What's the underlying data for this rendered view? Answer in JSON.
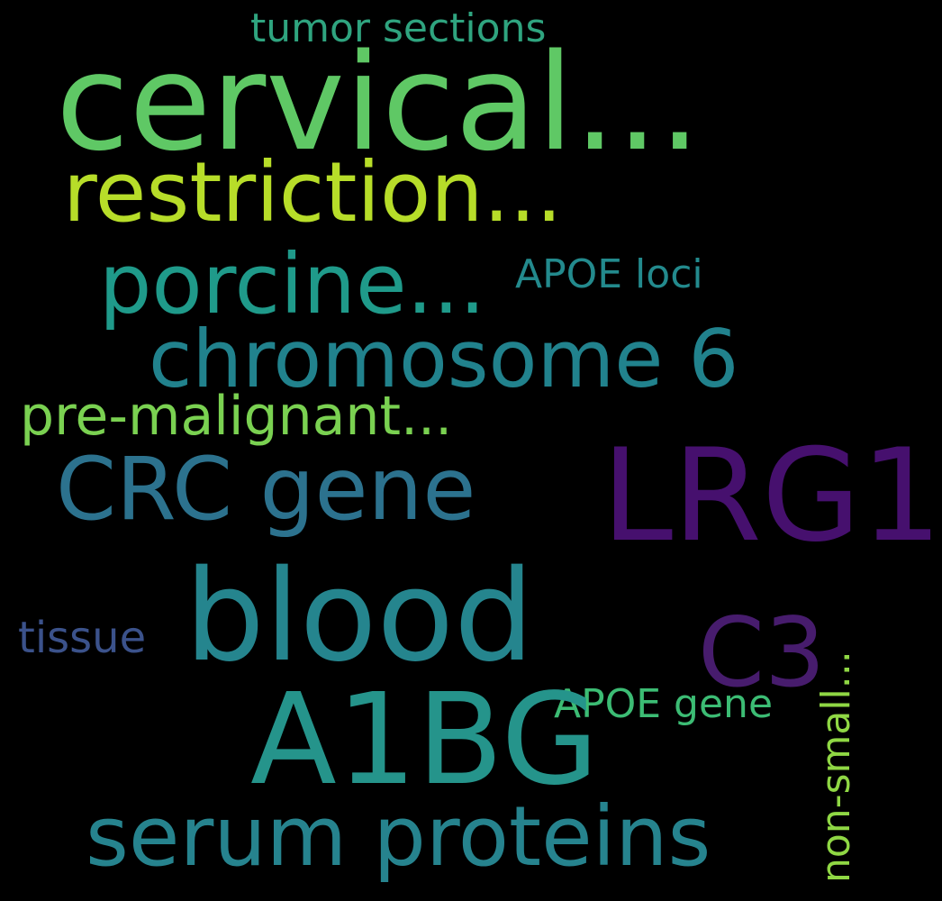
{
  "background_color": "#000000",
  "words": [
    {
      "text": "tumor sections",
      "color": "#2FA47F"
    },
    {
      "text": "cervical...",
      "color": "#5FC865"
    },
    {
      "text": "restriction...",
      "color": "#B7DD29"
    },
    {
      "text": "porcine...",
      "color": "#1F9A8A"
    },
    {
      "text": "APOE loci",
      "color": "#238A8D"
    },
    {
      "text": "chromosome 6",
      "color": "#21828D"
    },
    {
      "text": "pre-malignant...",
      "color": "#7AD151"
    },
    {
      "text": "CRC gene",
      "color": "#2C728E"
    },
    {
      "text": "LRG1",
      "color": "#46106E"
    },
    {
      "text": "blood",
      "color": "#25858E"
    },
    {
      "text": "tissue",
      "color": "#3B528B"
    },
    {
      "text": "C3",
      "color": "#471C6D"
    },
    {
      "text": "APOE gene",
      "color": "#3CBC74"
    },
    {
      "text": "A1BG",
      "color": "#25948B"
    },
    {
      "text": "serum proteins",
      "color": "#26838E"
    },
    {
      "text": "non-small...",
      "color": "#8FD744"
    }
  ]
}
